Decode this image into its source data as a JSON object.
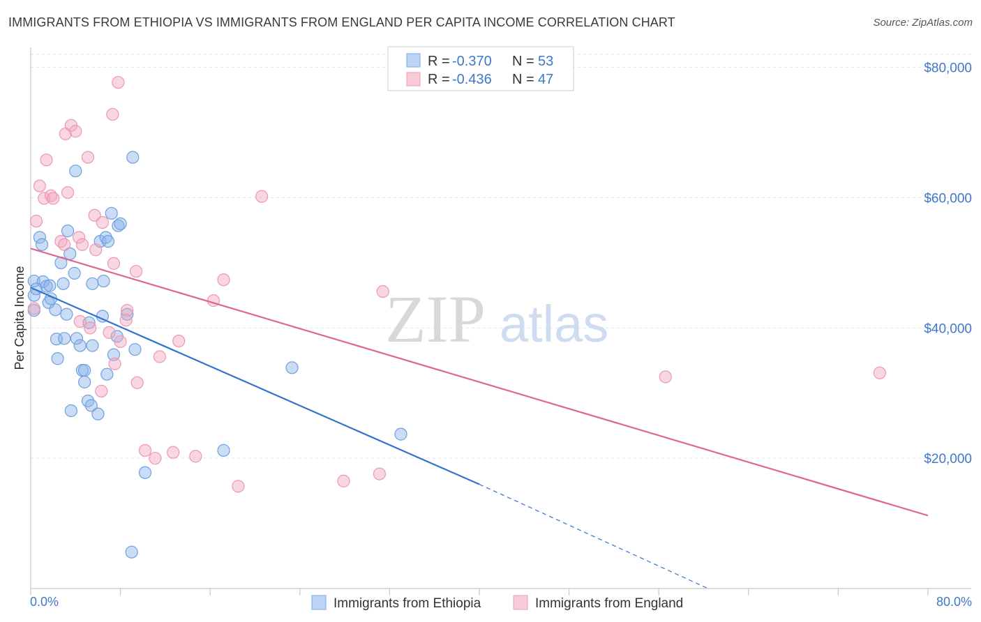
{
  "title": "IMMIGRANTS FROM ETHIOPIA VS IMMIGRANTS FROM ENGLAND PER CAPITA INCOME CORRELATION CHART",
  "source": "Source: ZipAtlas.com",
  "watermark": {
    "zip": "ZIP",
    "atlas": "atlas"
  },
  "legend": {
    "r_label": "R =",
    "n_label": "N =",
    "rows": [
      {
        "r": "-0.370",
        "n": "53"
      },
      {
        "r": "-0.436",
        "n": "47"
      }
    ]
  },
  "chart_data": {
    "type": "scatter",
    "title": "IMMIGRANTS FROM ETHIOPIA VS IMMIGRANTS FROM ENGLAND PER CAPITA INCOME CORRELATION CHART",
    "xlabel": "",
    "ylabel": "Per Capita Income",
    "xlim": [
      0,
      80
    ],
    "ylim": [
      0,
      82000
    ],
    "x_tick_labels": [
      "0.0%",
      "80.0%"
    ],
    "y_ticks": [
      20000,
      40000,
      60000,
      80000
    ],
    "y_tick_labels": [
      "$20,000",
      "$40,000",
      "$60,000",
      "$80,000"
    ],
    "grid": true,
    "colors": {
      "ethiopia": "#8bb4e8",
      "ethiopia_line": "#2f72d0",
      "england": "#f2a7bf",
      "england_line": "#e0648f"
    },
    "series": [
      {
        "name": "Immigrants from Ethiopia",
        "r": -0.37,
        "n": 53,
        "trend": {
          "x0": 0,
          "y0": 46200,
          "x1": 40,
          "y1": 16000,
          "dash_x_end": 60.4,
          "dash_y_end": 0
        },
        "points": [
          [
            0.3,
            47200
          ],
          [
            0.3,
            45000
          ],
          [
            0.3,
            42700
          ],
          [
            0.8,
            53900
          ],
          [
            1.0,
            52800
          ],
          [
            1.1,
            47100
          ],
          [
            1.4,
            46400
          ],
          [
            1.6,
            43900
          ],
          [
            1.7,
            46500
          ],
          [
            1.8,
            44500
          ],
          [
            2.2,
            42800
          ],
          [
            2.3,
            38300
          ],
          [
            2.4,
            35300
          ],
          [
            2.7,
            50000
          ],
          [
            2.9,
            46800
          ],
          [
            3.0,
            38400
          ],
          [
            3.2,
            42100
          ],
          [
            3.3,
            54900
          ],
          [
            3.5,
            51400
          ],
          [
            3.6,
            27300
          ],
          [
            3.9,
            48400
          ],
          [
            4.0,
            64100
          ],
          [
            4.1,
            38400
          ],
          [
            4.4,
            37300
          ],
          [
            4.6,
            33500
          ],
          [
            4.8,
            31700
          ],
          [
            4.8,
            33500
          ],
          [
            5.1,
            28800
          ],
          [
            5.4,
            28100
          ],
          [
            5.5,
            37300
          ],
          [
            5.5,
            46800
          ],
          [
            6.0,
            26800
          ],
          [
            6.2,
            53300
          ],
          [
            6.4,
            41800
          ],
          [
            6.5,
            47200
          ],
          [
            6.7,
            53900
          ],
          [
            6.8,
            32900
          ],
          [
            6.9,
            53300
          ],
          [
            7.2,
            57600
          ],
          [
            7.4,
            35900
          ],
          [
            7.7,
            38700
          ],
          [
            7.8,
            55700
          ],
          [
            8.0,
            56000
          ],
          [
            8.6,
            42100
          ],
          [
            9.0,
            5600
          ],
          [
            9.1,
            66200
          ],
          [
            9.3,
            36700
          ],
          [
            10.2,
            17800
          ],
          [
            17.2,
            21200
          ],
          [
            23.3,
            33900
          ],
          [
            33.0,
            23700
          ],
          [
            0.5,
            46000
          ],
          [
            5.2,
            40800
          ]
        ]
      },
      {
        "name": "Immigrants from England",
        "r": -0.436,
        "n": 47,
        "trend": {
          "x0": 0,
          "y0": 52200,
          "x1": 80,
          "y1": 11200
        },
        "points": [
          [
            0.3,
            43000
          ],
          [
            0.5,
            56400
          ],
          [
            0.8,
            61800
          ],
          [
            1.2,
            59900
          ],
          [
            1.4,
            65800
          ],
          [
            1.8,
            60300
          ],
          [
            2.0,
            59900
          ],
          [
            2.7,
            53300
          ],
          [
            3.0,
            52800
          ],
          [
            3.1,
            69800
          ],
          [
            3.3,
            60800
          ],
          [
            3.6,
            71100
          ],
          [
            4.0,
            70200
          ],
          [
            4.3,
            53900
          ],
          [
            4.4,
            41000
          ],
          [
            4.6,
            52800
          ],
          [
            5.1,
            66200
          ],
          [
            5.3,
            40000
          ],
          [
            5.7,
            57300
          ],
          [
            5.8,
            52000
          ],
          [
            6.3,
            30300
          ],
          [
            6.4,
            56200
          ],
          [
            7.0,
            39300
          ],
          [
            7.3,
            72800
          ],
          [
            7.4,
            49900
          ],
          [
            7.5,
            34500
          ],
          [
            7.8,
            77700
          ],
          [
            8.0,
            37900
          ],
          [
            8.6,
            42700
          ],
          [
            8.5,
            41200
          ],
          [
            9.4,
            48700
          ],
          [
            9.5,
            31600
          ],
          [
            10.2,
            21200
          ],
          [
            11.1,
            20000
          ],
          [
            11.5,
            35600
          ],
          [
            12.7,
            20900
          ],
          [
            13.2,
            38000
          ],
          [
            14.7,
            20300
          ],
          [
            16.3,
            44200
          ],
          [
            17.2,
            47400
          ],
          [
            18.5,
            15700
          ],
          [
            20.6,
            60200
          ],
          [
            27.9,
            16500
          ],
          [
            31.4,
            45600
          ],
          [
            31.1,
            17600
          ],
          [
            56.6,
            32500
          ],
          [
            75.7,
            33100
          ]
        ]
      }
    ]
  }
}
